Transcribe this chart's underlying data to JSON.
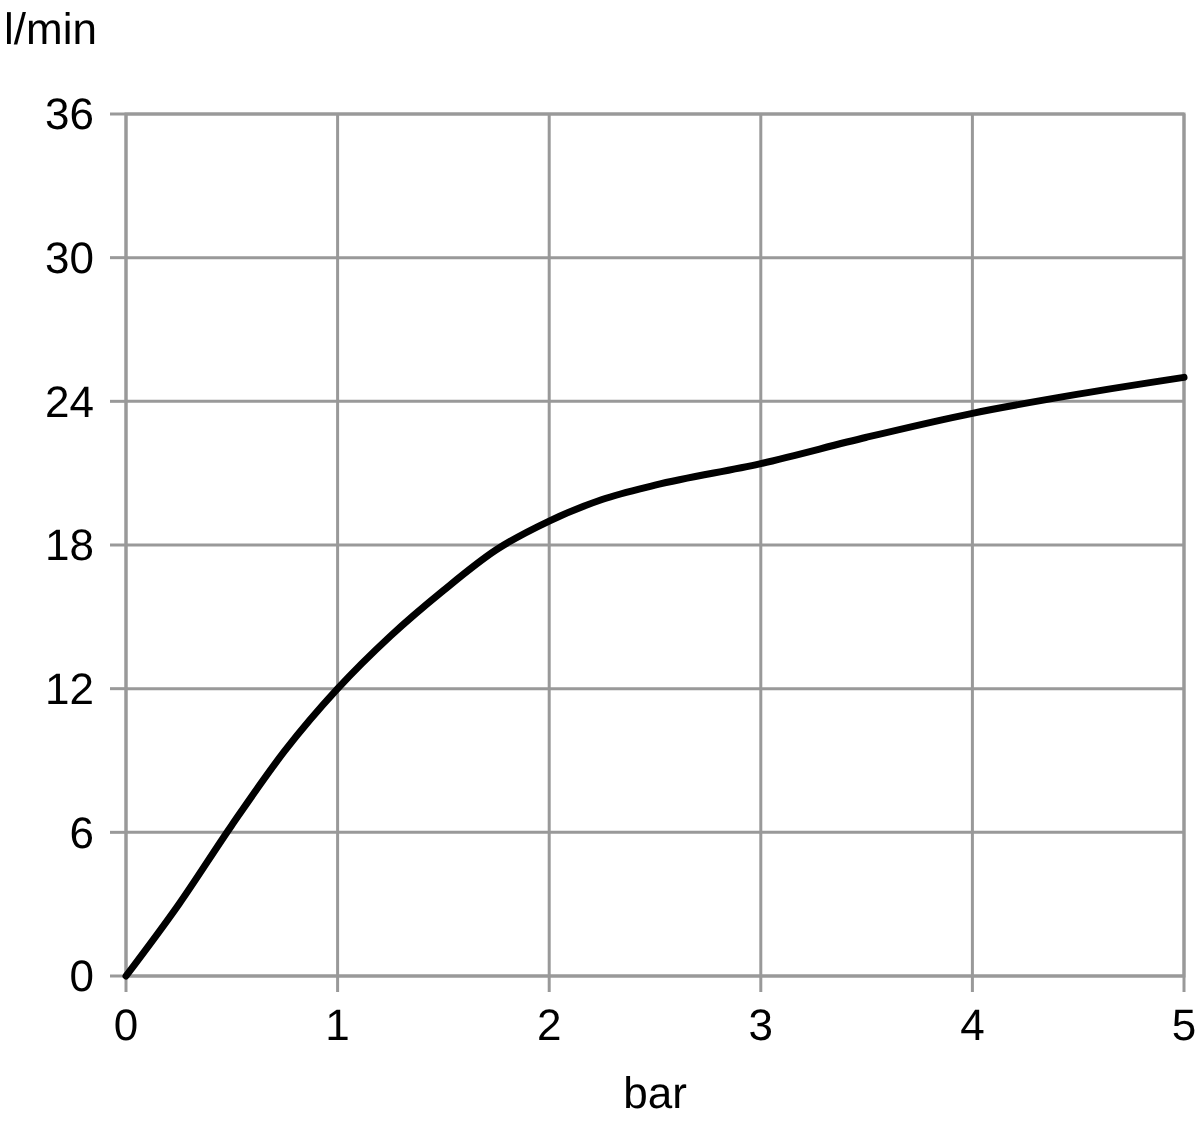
{
  "chart_data": {
    "type": "line",
    "xlabel": "bar",
    "ylabel": "l/min",
    "x": [
      0,
      0.25,
      0.5,
      0.75,
      1,
      1.25,
      1.5,
      1.75,
      2,
      2.25,
      2.5,
      3,
      3.5,
      4,
      4.5,
      5
    ],
    "series": [
      {
        "color": "#000000",
        "values": [
          0,
          3,
          6.3,
          9.4,
          12,
          14.2,
          16.1,
          17.8,
          19,
          19.9,
          20.5,
          21.4,
          22.5,
          23.5,
          24.3,
          25
        ]
      }
    ],
    "xlim": [
      0,
      5
    ],
    "xticks": [
      0,
      1,
      2,
      3,
      4,
      5
    ],
    "ylim": [
      0,
      36
    ],
    "yticks": [
      0,
      6,
      12,
      18,
      24,
      30,
      36
    ],
    "grid": true,
    "marker": "none",
    "line_style": "solid"
  }
}
